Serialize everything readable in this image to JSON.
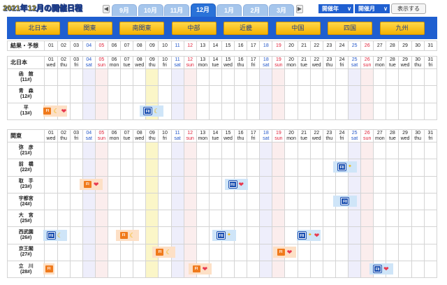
{
  "header": {
    "title": "2021年12月の開催日程",
    "prev_label": "◀",
    "next_label": "▶",
    "month_tabs": [
      {
        "label": "9月",
        "active": false
      },
      {
        "label": "10月",
        "active": false
      },
      {
        "label": "11月",
        "active": false
      },
      {
        "label": "12月",
        "active": true
      },
      {
        "label": "1月",
        "active": false
      },
      {
        "label": "2月",
        "active": false
      },
      {
        "label": "3月",
        "active": false
      }
    ],
    "year_select": "開催年",
    "month_select": "開催月",
    "select_chevron": "∨",
    "show_button": "表示する"
  },
  "regions": [
    "北日本",
    "関東",
    "南関東",
    "中部",
    "近畿",
    "中国",
    "四国",
    "九州"
  ],
  "days": [
    "01",
    "02",
    "03",
    "04",
    "05",
    "06",
    "07",
    "08",
    "09",
    "10",
    "11",
    "12",
    "13",
    "14",
    "15",
    "16",
    "17",
    "18",
    "19",
    "20",
    "21",
    "22",
    "23",
    "24",
    "25",
    "26",
    "27",
    "28",
    "29",
    "30",
    "31"
  ],
  "weekdays": [
    "wed",
    "thu",
    "fri",
    "sat",
    "sun",
    "mon",
    "tue",
    "wed",
    "thu",
    "fri",
    "sat",
    "sun",
    "mon",
    "tue",
    "wed",
    "thu",
    "fri",
    "sat",
    "sun",
    "mon",
    "tue",
    "wed",
    "thu",
    "fri",
    "sat",
    "sun",
    "mon",
    "tue",
    "wed",
    "thu",
    "fri"
  ],
  "result_row_label": "結果・予想",
  "kitanihon": {
    "section_label": "北日本",
    "venues": [
      {
        "name": "函　館",
        "count": "(11#)"
      },
      {
        "name": "青　森",
        "count": "(12#)"
      },
      {
        "name": "平",
        "count": "(13#)"
      }
    ]
  },
  "kanto": {
    "section_label": "関東",
    "venues": [
      {
        "name": "弥　彦",
        "count": "(21#)"
      },
      {
        "name": "前　橋",
        "count": "(22#)"
      },
      {
        "name": "取　手",
        "count": "(23#)"
      },
      {
        "name": "宇都宮",
        "count": "(24#)"
      },
      {
        "name": "大　宮",
        "count": "(25#)"
      },
      {
        "name": "西武園",
        "count": "(26#)"
      },
      {
        "name": "京王閣",
        "count": "(27#)"
      },
      {
        "name": "立　川",
        "count": "(28#)"
      }
    ]
  },
  "events": [
    {
      "venue": "平",
      "days": "01-02",
      "grade": "FI",
      "icons": [
        "moon",
        "heart"
      ]
    },
    {
      "venue": "平",
      "days": "09-10",
      "grade": "FII",
      "icons": [
        "moon"
      ]
    },
    {
      "venue": "前橋",
      "days": "25-26",
      "grade": "FII",
      "icons": [
        "star"
      ]
    },
    {
      "venue": "取手",
      "days": "04-05",
      "grade": "FI",
      "icons": [
        "heart"
      ]
    },
    {
      "venue": "取手",
      "days": "16-17",
      "grade": "FII",
      "icons": [
        "heart"
      ]
    },
    {
      "venue": "宇都宮",
      "days": "25-26",
      "grade": "FII",
      "icons": []
    },
    {
      "venue": "西武園",
      "days": "01-02",
      "grade": "FII",
      "icons": [
        "moon"
      ]
    },
    {
      "venue": "西武園",
      "days": "07-08",
      "grade": "FI",
      "icons": [
        "moon"
      ]
    },
    {
      "venue": "西武園",
      "days": "15-16",
      "grade": "FII",
      "icons": [
        "star"
      ]
    },
    {
      "venue": "西武園",
      "days": "22-23",
      "grade": "FII",
      "icons": [
        "star",
        "heart"
      ]
    },
    {
      "venue": "京王閣",
      "days": "10-11",
      "grade": "FI",
      "icons": [
        "moon"
      ]
    },
    {
      "venue": "京王閣",
      "days": "20-21",
      "grade": "FI",
      "icons": [
        "heart"
      ]
    },
    {
      "venue": "立川",
      "days": "01",
      "grade": "FI",
      "icons": []
    },
    {
      "venue": "立川",
      "days": "13-14",
      "grade": "FI",
      "icons": [
        "heart"
      ]
    },
    {
      "venue": "立川",
      "days": "28-29",
      "grade": "FII",
      "icons": [
        "heart"
      ]
    }
  ],
  "icon_glyphs": {
    "moon": "☾",
    "heart": "❤",
    "star": "✦"
  },
  "colors": {
    "brand_blue": "#1f5fd0",
    "region_button": "#ffd84a",
    "fi_badge": "#f07a1c",
    "fii_badge": "#1a4fb0",
    "saturday": "#2457c8",
    "sunday": "#e0233a",
    "highlight_column": "#fbf6c8"
  }
}
